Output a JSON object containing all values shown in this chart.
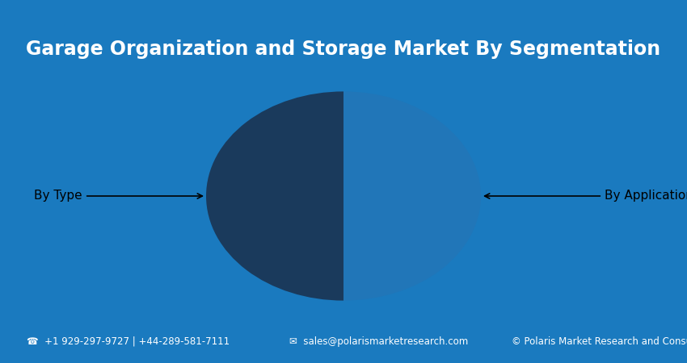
{
  "title": "Garage Organization and Storage Market By Segmentation",
  "title_color": "#ffffff",
  "title_fontsize": 17,
  "outer_bg_color": "#1a7abf",
  "inner_bg_color": "#ffffff",
  "background_color": "#ffffff",
  "pie_slices": [
    50,
    50
  ],
  "pie_colors": [
    "#1a3a5c",
    "#2176b8"
  ],
  "pie_labels": [
    "By Type",
    "By Application"
  ],
  "pie_startangle": 90,
  "footer_left": "+1 929-297-9727 | +44-289-581-7111",
  "footer_mid": "sales@polarismarketresearch.com",
  "footer_right": "Polaris Market Research and Consulting LLP",
  "footer_fontsize": 8.5,
  "annotation_fontsize": 11
}
